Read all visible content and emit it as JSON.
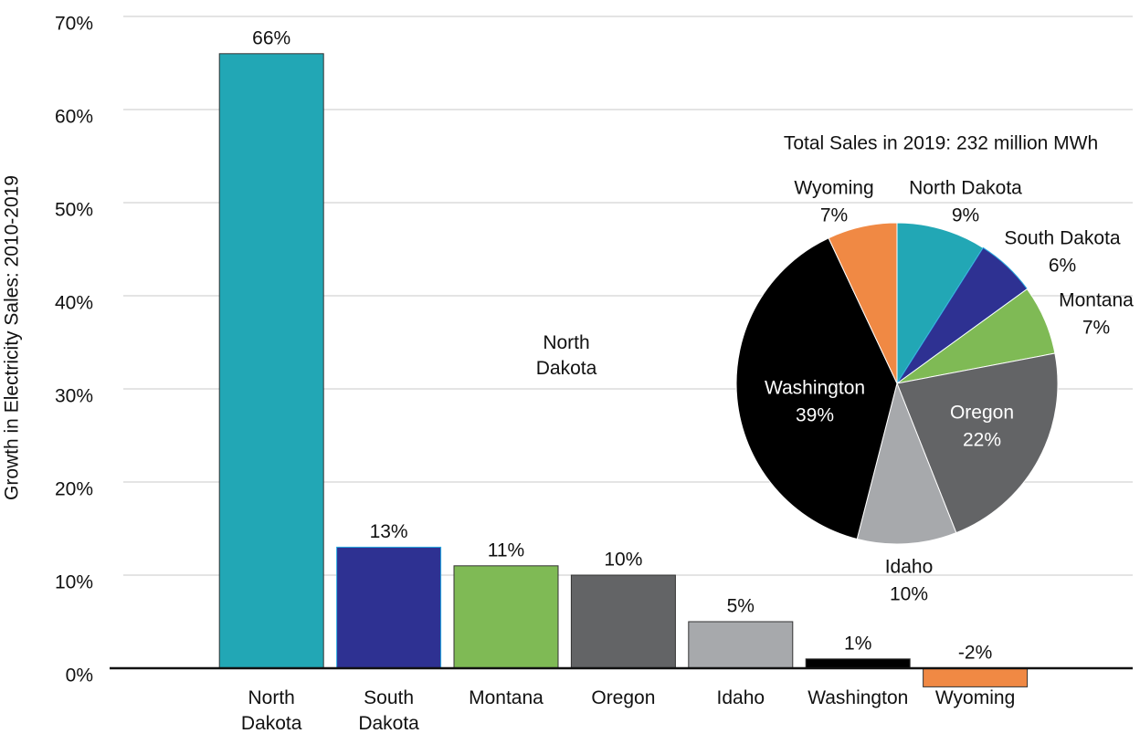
{
  "chart_data": [
    {
      "type": "bar",
      "y_label": "Growth in Electricity Sales: 2010-2019",
      "annotation": "North Dakota",
      "categories": [
        "North Dakota",
        "South Dakota",
        "Montana",
        "Oregon",
        "Idaho",
        "Washington",
        "Wyoming"
      ],
      "values": [
        66,
        13,
        11,
        10,
        5,
        1,
        -2
      ],
      "value_labels": [
        "66%",
        "13%",
        "11%",
        "10%",
        "5%",
        "1%",
        "-2%"
      ],
      "colors": [
        "#22a7b5",
        "#2e3192",
        "#7fba55",
        "#636466",
        "#a7a9ac",
        "#000000",
        "#f08944"
      ],
      "ylim": [
        0,
        70
      ],
      "yticks": [
        {
          "value": 0,
          "label": "0%"
        },
        {
          "value": 10,
          "label": "10%"
        },
        {
          "value": 20,
          "label": "20%"
        },
        {
          "value": 30,
          "label": "30%"
        },
        {
          "value": 40,
          "label": "40%"
        },
        {
          "value": 50,
          "label": "50%"
        },
        {
          "value": 60,
          "label": "60%"
        },
        {
          "value": 70,
          "label": "70%"
        }
      ],
      "grid": true
    },
    {
      "type": "pie",
      "title": "Total Sales in 2019: 232 million MWh",
      "categories": [
        "North Dakota",
        "South Dakota",
        "Montana",
        "Oregon",
        "Idaho",
        "Washington",
        "Wyoming"
      ],
      "values": [
        9,
        6,
        7,
        22,
        10,
        39,
        7
      ],
      "value_labels": [
        "9%",
        "6%",
        "7%",
        "22%",
        "10%",
        "39%",
        "7%"
      ],
      "colors": [
        "#22a7b5",
        "#2e3192",
        "#7fba55",
        "#636466",
        "#a7a9ac",
        "#000000",
        "#f08944"
      ]
    }
  ]
}
